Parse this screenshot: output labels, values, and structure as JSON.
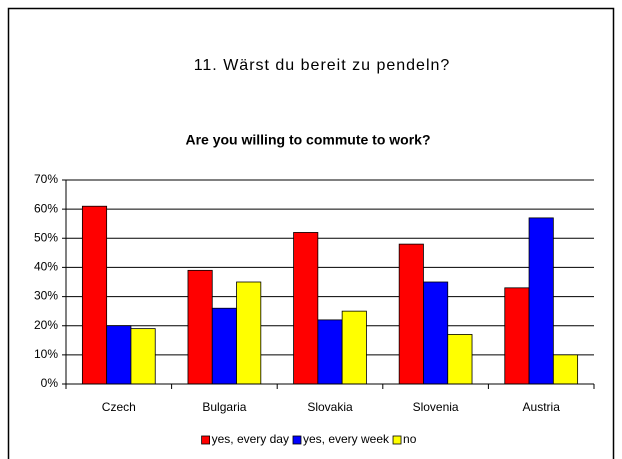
{
  "heading": "11. Wärst du bereit zu pendeln?",
  "chart_data": {
    "type": "bar",
    "title": "Are you willing to commute to work?",
    "categories": [
      "Czech",
      "Bulgaria",
      "Slovakia",
      "Slovenia",
      "Austria"
    ],
    "series": [
      {
        "name": "yes, every day",
        "color": "#ff0000",
        "values": [
          61,
          39,
          52,
          48,
          33
        ]
      },
      {
        "name": "yes, every week",
        "color": "#0000ff",
        "values": [
          20,
          26,
          22,
          35,
          57
        ]
      },
      {
        "name": "no",
        "color": "#ffff00",
        "values": [
          19,
          35,
          25,
          17,
          10
        ]
      }
    ],
    "ylim": [
      0,
      70
    ],
    "yticks": [
      {
        "value": 0,
        "label": "0%"
      },
      {
        "value": 10,
        "label": "10%"
      },
      {
        "value": 20,
        "label": "20%"
      },
      {
        "value": 30,
        "label": "30%"
      },
      {
        "value": 40,
        "label": "40%"
      },
      {
        "value": 50,
        "label": "50%"
      },
      {
        "value": 60,
        "label": "60%"
      },
      {
        "value": 70,
        "label": "70%"
      }
    ],
    "grid": true,
    "legend": "bottom"
  }
}
